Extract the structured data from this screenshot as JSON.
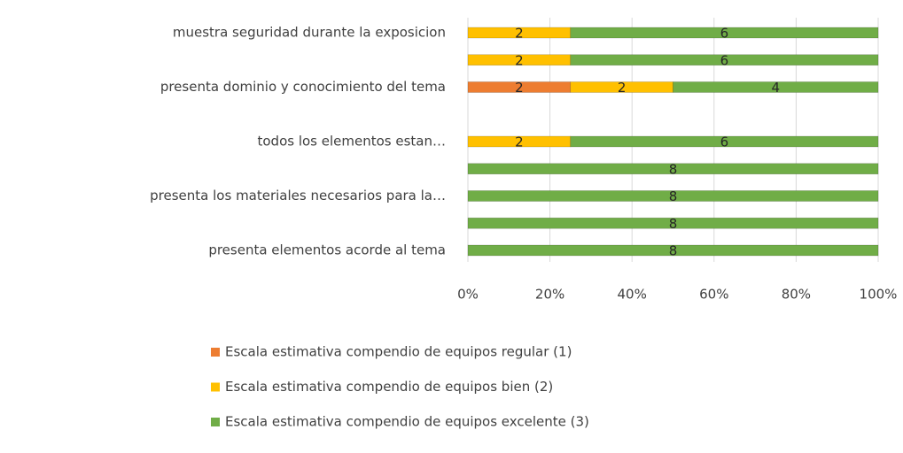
{
  "chart_data": {
    "type": "bar",
    "orientation": "horizontal",
    "stacking": "percent",
    "categories": [
      "muestra seguridad durante la exposicion",
      null,
      "presenta dominio y conocimiento del tema",
      null,
      "todos los elementos estan…",
      null,
      "presenta los materiales necesarios para la…",
      null,
      "presenta elementos acorde al tema"
    ],
    "series": [
      {
        "name": "Escala estimativa compendio de equipos  regular (1)",
        "color": "#ed7d31",
        "values": [
          null,
          null,
          2,
          null,
          null,
          null,
          null,
          null,
          null
        ]
      },
      {
        "name": "Escala estimativa compendio de equipos  bien (2)",
        "color": "#ffc000",
        "values": [
          2,
          2,
          2,
          null,
          2,
          null,
          null,
          null,
          null
        ]
      },
      {
        "name": "Escala estimativa compendio de equipos  excelente (3)",
        "color": "#70ad47",
        "values": [
          6,
          6,
          4,
          null,
          6,
          8,
          8,
          8,
          8
        ]
      }
    ],
    "xlim": [
      0,
      100
    ],
    "xticks": [
      {
        "value": 0,
        "label": "0%"
      },
      {
        "value": 20,
        "label": "20%"
      },
      {
        "value": 40,
        "label": "40%"
      },
      {
        "value": 60,
        "label": "60%"
      },
      {
        "value": 80,
        "label": "80%"
      },
      {
        "value": 100,
        "label": "100%"
      }
    ],
    "grid": true,
    "legend": "bottom"
  }
}
